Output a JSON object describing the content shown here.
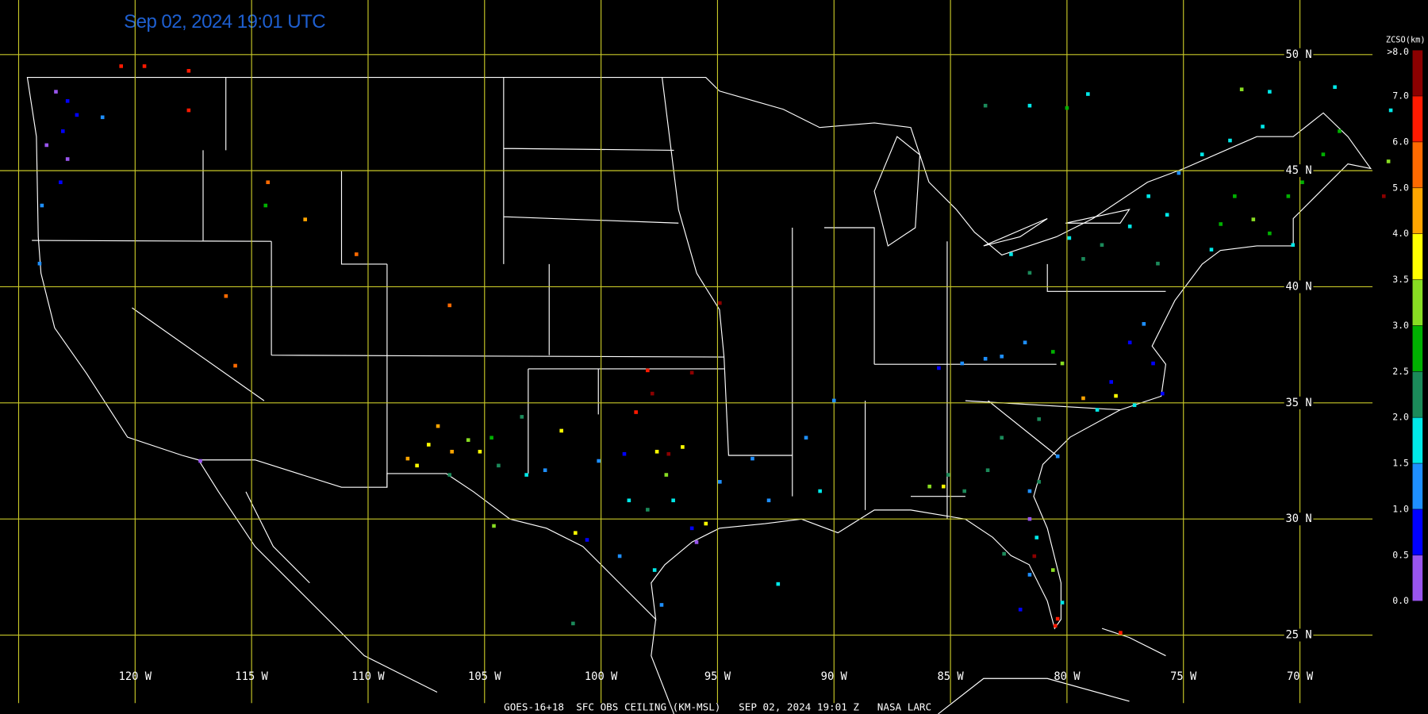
{
  "title": "Sep 02, 2024 19:01 UTC",
  "footer": "GOES-16+18  SFC OBS CEILING (KM-MSL)   SEP 02, 2024 19:01 Z   NASA LARC",
  "map": {
    "lonlim": [
      -125.8,
      -64.5
    ],
    "latlim": [
      21.6,
      52.35
    ],
    "lat_ticks": [
      {
        "value": 50,
        "label": "50 N"
      },
      {
        "value": 45,
        "label": "45 N"
      },
      {
        "value": 40,
        "label": "40 N"
      },
      {
        "value": 35,
        "label": "35 N"
      },
      {
        "value": 30,
        "label": "30 N"
      },
      {
        "value": 25,
        "label": "25 N"
      }
    ],
    "lon_ticks": [
      {
        "value": -120,
        "label": "120 W"
      },
      {
        "value": -115,
        "label": "115 W"
      },
      {
        "value": -110,
        "label": "110 W"
      },
      {
        "value": -105,
        "label": "105 W"
      },
      {
        "value": -100,
        "label": "100 W"
      },
      {
        "value": -95,
        "label": "95 W"
      },
      {
        "value": -90,
        "label": "90 W"
      },
      {
        "value": -85,
        "label": "85 W"
      },
      {
        "value": -80,
        "label": "80 W"
      },
      {
        "value": -75,
        "label": "75 W"
      },
      {
        "value": -70,
        "label": "70 W"
      }
    ],
    "extra_meridians": [
      -125
    ],
    "grid_color": "#c8c828"
  },
  "colorbar": {
    "title": "ZCSO(km)",
    "label_color": "#ff9a1a",
    "ticks": [
      {
        "value": 0,
        "label": "0.0"
      },
      {
        "value": 0.5,
        "label": "0.5"
      },
      {
        "value": 1,
        "label": "1.0"
      },
      {
        "value": 1.5,
        "label": "1.5"
      },
      {
        "value": 2,
        "label": "2.0"
      },
      {
        "value": 2.5,
        "label": "2.5"
      },
      {
        "value": 3,
        "label": "3.0"
      },
      {
        "value": 3.5,
        "label": "3.5"
      },
      {
        "value": 4,
        "label": "4.0"
      },
      {
        "value": 5,
        "label": "5.0"
      },
      {
        "value": 6,
        "label": "6.0"
      },
      {
        "value": 7,
        "label": "7.0"
      },
      {
        "value": 8,
        "label": ">8.0"
      }
    ],
    "colors": [
      "#9955ee",
      "#0000ff",
      "#1e8fff",
      "#00e8e8",
      "#1b8a5a",
      "#00b000",
      "#88dd22",
      "#ffff00",
      "#ffa500",
      "#ff6a00",
      "#ff1a00",
      "#8b0000"
    ]
  },
  "stations": [
    [
      -123.4,
      48.4,
      0.3
    ],
    [
      -122.9,
      48.0,
      0.8
    ],
    [
      -122.5,
      47.4,
      0.7
    ],
    [
      -123.1,
      46.7,
      0.9
    ],
    [
      -123.8,
      46.1,
      0.2
    ],
    [
      -122.9,
      45.5,
      0.4
    ],
    [
      -123.2,
      44.5,
      0.8
    ],
    [
      -124.0,
      43.5,
      1.2
    ],
    [
      -124.1,
      41.0,
      1.3
    ],
    [
      -121.4,
      47.3,
      1.2
    ],
    [
      -120.6,
      49.5,
      6.5
    ],
    [
      -119.6,
      49.5,
      6.5
    ],
    [
      -117.7,
      49.3,
      6.8
    ],
    [
      -117.7,
      47.6,
      6.5
    ],
    [
      -114.3,
      44.5,
      5.5
    ],
    [
      -114.4,
      43.5,
      2.8
    ],
    [
      -112.7,
      42.9,
      4.5
    ],
    [
      -110.5,
      41.4,
      5.5
    ],
    [
      -116.1,
      39.6,
      5.5
    ],
    [
      -115.7,
      36.6,
      5.5
    ],
    [
      -106.5,
      39.2,
      5.5
    ],
    [
      -94.9,
      39.3,
      7.5
    ],
    [
      -98.0,
      36.4,
      6.8
    ],
    [
      -96.1,
      36.3,
      7.5
    ],
    [
      -98.5,
      34.6,
      6.8
    ],
    [
      -97.8,
      35.4,
      7.5
    ],
    [
      -107.0,
      34.0,
      4.5
    ],
    [
      -107.4,
      33.2,
      3.8
    ],
    [
      -108.3,
      32.6,
      4.5
    ],
    [
      -107.9,
      32.3,
      3.8
    ],
    [
      -106.4,
      32.9,
      4.5
    ],
    [
      -105.7,
      33.4,
      3.2
    ],
    [
      -105.2,
      32.9,
      3.8
    ],
    [
      -104.7,
      33.5,
      2.8
    ],
    [
      -103.4,
      34.4,
      2.2
    ],
    [
      -104.4,
      32.3,
      2.2
    ],
    [
      -103.2,
      31.9,
      1.8
    ],
    [
      -102.4,
      32.1,
      1.2
    ],
    [
      -101.7,
      33.8,
      3.8
    ],
    [
      -100.1,
      32.5,
      1.2
    ],
    [
      -99.0,
      32.8,
      0.8
    ],
    [
      -97.6,
      32.9,
      3.8
    ],
    [
      -97.1,
      32.8,
      7.5
    ],
    [
      -96.5,
      33.1,
      3.8
    ],
    [
      -97.2,
      31.9,
      3.2
    ],
    [
      -98.8,
      30.8,
      1.8
    ],
    [
      -98.0,
      30.4,
      2.2
    ],
    [
      -96.9,
      30.8,
      1.8
    ],
    [
      -96.1,
      29.6,
      0.8
    ],
    [
      -95.9,
      29.0,
      0.3
    ],
    [
      -95.5,
      29.8,
      3.8
    ],
    [
      -94.9,
      31.6,
      1.2
    ],
    [
      -93.5,
      32.6,
      1.2
    ],
    [
      -92.8,
      30.8,
      1.2
    ],
    [
      -92.4,
      27.2,
      1.8
    ],
    [
      -101.2,
      25.5,
      2.2
    ],
    [
      -97.7,
      27.8,
      1.8
    ],
    [
      -97.4,
      26.3,
      1.2
    ],
    [
      -99.2,
      28.4,
      1.2
    ],
    [
      -100.6,
      29.1,
      0.8
    ],
    [
      -101.1,
      29.4,
      3.8
    ],
    [
      -104.6,
      29.7,
      3.2
    ],
    [
      -106.5,
      31.9,
      2.2
    ],
    [
      -117.2,
      32.5,
      0.3
    ],
    [
      -91.2,
      33.5,
      1.2
    ],
    [
      -90.6,
      31.2,
      1.8
    ],
    [
      -90.0,
      35.1,
      1.2
    ],
    [
      -85.5,
      36.5,
      0.8
    ],
    [
      -84.5,
      36.7,
      1.2
    ],
    [
      -83.5,
      36.9,
      1.2
    ],
    [
      -82.8,
      37.0,
      1.2
    ],
    [
      -81.8,
      37.6,
      1.2
    ],
    [
      -80.6,
      37.2,
      2.8
    ],
    [
      -80.2,
      36.7,
      3.2
    ],
    [
      -81.6,
      47.8,
      1.8
    ],
    [
      -83.5,
      47.8,
      2.2
    ],
    [
      -80.0,
      47.7,
      2.8
    ],
    [
      -79.1,
      48.3,
      1.8
    ],
    [
      -72.5,
      48.5,
      3.2
    ],
    [
      -71.3,
      48.4,
      1.8
    ],
    [
      -68.5,
      48.6,
      1.8
    ],
    [
      -71.6,
      46.9,
      1.8
    ],
    [
      -73.0,
      46.3,
      1.8
    ],
    [
      -74.2,
      45.7,
      1.8
    ],
    [
      -75.2,
      44.9,
      1.2
    ],
    [
      -76.5,
      43.9,
      1.8
    ],
    [
      -77.3,
      42.6,
      1.8
    ],
    [
      -75.7,
      43.1,
      1.8
    ],
    [
      -78.5,
      41.8,
      2.2
    ],
    [
      -79.3,
      41.2,
      2.2
    ],
    [
      -81.6,
      40.6,
      2.2
    ],
    [
      -82.4,
      41.4,
      1.8
    ],
    [
      -79.9,
      42.1,
      1.8
    ],
    [
      -76.1,
      41.0,
      2.2
    ],
    [
      -73.8,
      41.6,
      1.8
    ],
    [
      -73.4,
      42.7,
      2.8
    ],
    [
      -72.8,
      43.9,
      2.8
    ],
    [
      -72.0,
      42.9,
      3.2
    ],
    [
      -71.3,
      42.3,
      2.8
    ],
    [
      -70.3,
      41.8,
      1.8
    ],
    [
      -70.5,
      43.9,
      2.8
    ],
    [
      -69.9,
      44.5,
      2.8
    ],
    [
      -69.0,
      45.7,
      2.8
    ],
    [
      -68.3,
      46.7,
      2.8
    ],
    [
      -66.2,
      45.4,
      3.2
    ],
    [
      -66.1,
      47.6,
      1.8
    ],
    [
      -66.4,
      43.9,
      7.5
    ],
    [
      -76.7,
      38.4,
      1.2
    ],
    [
      -77.3,
      37.6,
      0.8
    ],
    [
      -76.3,
      36.7,
      0.8
    ],
    [
      -75.9,
      35.4,
      0.8
    ],
    [
      -78.1,
      35.9,
      0.8
    ],
    [
      -77.9,
      35.3,
      3.8
    ],
    [
      -79.3,
      35.2,
      4.5
    ],
    [
      -78.7,
      34.7,
      1.8
    ],
    [
      -77.1,
      34.9,
      1.8
    ],
    [
      -81.2,
      34.3,
      2.2
    ],
    [
      -82.8,
      33.5,
      2.2
    ],
    [
      -80.4,
      32.7,
      1.2
    ],
    [
      -81.2,
      31.6,
      2.2
    ],
    [
      -81.6,
      31.2,
      1.2
    ],
    [
      -83.4,
      32.1,
      2.2
    ],
    [
      -85.1,
      31.9,
      2.2
    ],
    [
      -85.9,
      31.4,
      3.2
    ],
    [
      -85.3,
      31.4,
      3.8
    ],
    [
      -84.4,
      31.2,
      2.2
    ],
    [
      -81.6,
      30.0,
      0.3
    ],
    [
      -81.3,
      29.2,
      1.8
    ],
    [
      -82.7,
      28.5,
      2.2
    ],
    [
      -81.4,
      28.4,
      7.5
    ],
    [
      -80.6,
      27.8,
      3.2
    ],
    [
      -81.6,
      27.6,
      1.2
    ],
    [
      -82.0,
      26.1,
      0.8
    ],
    [
      -80.2,
      26.4,
      1.8
    ],
    [
      -80.4,
      25.7,
      6.8
    ],
    [
      -77.7,
      25.1,
      6.8
    ],
    [
      -80.5,
      25.4,
      6.8
    ]
  ]
}
